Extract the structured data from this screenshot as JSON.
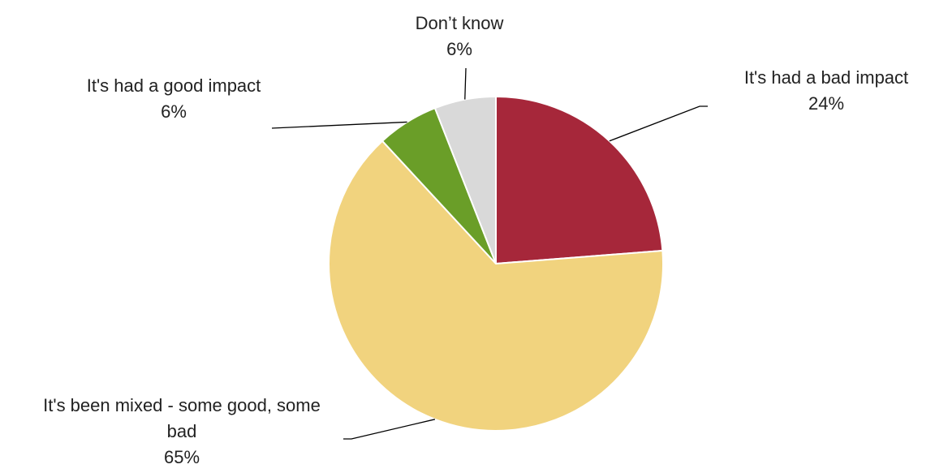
{
  "chart_data": {
    "type": "pie",
    "start_angle_deg": 0,
    "direction": "clockwise",
    "slices": [
      {
        "label": "It's had a bad impact",
        "label_lines": [
          "It's had a bad impact"
        ],
        "value": 24,
        "display": "24%",
        "color": "#A6273A"
      },
      {
        "label": "It's been mixed - some good, some bad",
        "label_lines": [
          "It's been mixed - some good, some",
          "bad"
        ],
        "value": 65,
        "display": "65%",
        "color": "#F1D37E"
      },
      {
        "label": "It's had a good impact",
        "label_lines": [
          "It's had a good impact"
        ],
        "value": 6,
        "display": "6%",
        "color": "#6A9E28"
      },
      {
        "label": "Don’t know",
        "label_lines": [
          "Don’t know"
        ],
        "value": 6,
        "display": "6%",
        "color": "#D9D9D9"
      }
    ]
  }
}
